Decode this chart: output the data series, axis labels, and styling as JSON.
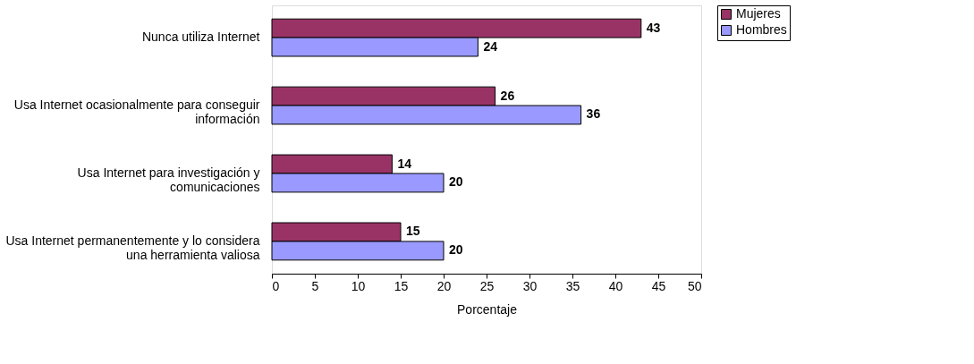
{
  "chart_data": {
    "type": "bar",
    "orientation": "horizontal",
    "xlabel": "Porcentaje",
    "categories": [
      "Nunca utiliza Internet",
      "Usa Internet ocasionalmente para conseguir información",
      "Usa Internet para investigación y comunicaciones",
      "Usa Internet permanentemente y lo considera una herramienta valiosa"
    ],
    "series": [
      {
        "name": "Mujeres",
        "color": "#993366",
        "values": [
          43,
          26,
          14,
          15
        ]
      },
      {
        "name": "Hombres",
        "color": "#9999ff",
        "values": [
          24,
          36,
          20,
          20
        ]
      }
    ],
    "xlim": [
      0,
      50
    ],
    "xticks": [
      0,
      5,
      10,
      15,
      20,
      25,
      30,
      35,
      40,
      45,
      50
    ],
    "data_labels": true,
    "grid": false,
    "legend": "right"
  }
}
